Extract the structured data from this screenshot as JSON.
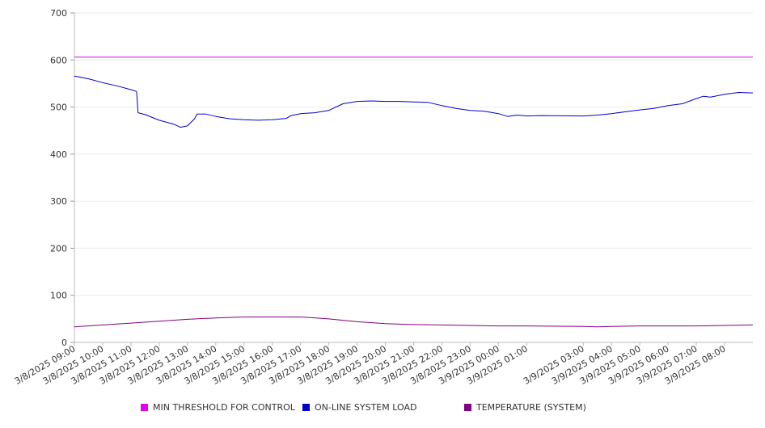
{
  "chart_data": {
    "type": "line",
    "title": "",
    "xlabel": "",
    "ylabel": "",
    "ylim": [
      0,
      700
    ],
    "yticks": [
      0,
      100,
      200,
      300,
      400,
      500,
      600,
      700
    ],
    "x_start": "3/8/2025 09:00",
    "x_end": "3/9/2025 09:00",
    "xticks": [
      "3/8/2025 09:00",
      "3/8/2025 10:00",
      "3/8/2025 11:00",
      "3/8/2025 12:00",
      "3/8/2025 13:00",
      "3/8/2025 14:00",
      "3/8/2025 15:00",
      "3/8/2025 16:00",
      "3/8/2025 17:00",
      "3/8/2025 18:00",
      "3/8/2025 19:00",
      "3/8/2025 20:00",
      "3/8/2025 21:00",
      "3/8/2025 22:00",
      "3/8/2025 23:00",
      "3/9/2025 00:00",
      "3/9/2025 01:00",
      "3/9/2025 03:00",
      "3/9/2025 04:00",
      "3/9/2025 05:00",
      "3/9/2025 06:00",
      "3/9/2025 07:00",
      "3/9/2025 08:00"
    ],
    "grid": true,
    "legend_position": "bottom",
    "series": [
      {
        "name": "MIN THRESHOLD FOR CONTROL",
        "color": "#e600e6",
        "points": [
          [
            "3/8/2025 09:00",
            606
          ],
          [
            "3/9/2025 09:00",
            606
          ]
        ]
      },
      {
        "name": "ON-LINE SYSTEM LOAD",
        "color": "#0000cc",
        "points": [
          [
            "3/8/2025 09:00",
            566
          ],
          [
            "3/8/2025 09:30",
            560
          ],
          [
            "3/8/2025 10:00",
            552
          ],
          [
            "3/8/2025 10:30",
            545
          ],
          [
            "3/8/2025 11:00",
            537
          ],
          [
            "3/8/2025 11:12",
            533
          ],
          [
            "3/8/2025 11:15",
            488
          ],
          [
            "3/8/2025 11:30",
            484
          ],
          [
            "3/8/2025 12:00",
            472
          ],
          [
            "3/8/2025 12:30",
            464
          ],
          [
            "3/8/2025 12:45",
            457
          ],
          [
            "3/8/2025 13:00",
            460
          ],
          [
            "3/8/2025 13:15",
            475
          ],
          [
            "3/8/2025 13:20",
            485
          ],
          [
            "3/8/2025 13:40",
            485
          ],
          [
            "3/8/2025 14:00",
            480
          ],
          [
            "3/8/2025 14:30",
            475
          ],
          [
            "3/8/2025 15:00",
            473
          ],
          [
            "3/8/2025 15:30",
            472
          ],
          [
            "3/8/2025 16:00",
            473
          ],
          [
            "3/8/2025 16:30",
            476
          ],
          [
            "3/8/2025 16:40",
            482
          ],
          [
            "3/8/2025 17:00",
            486
          ],
          [
            "3/8/2025 17:30",
            488
          ],
          [
            "3/8/2025 18:00",
            493
          ],
          [
            "3/8/2025 18:30",
            507
          ],
          [
            "3/8/2025 19:00",
            512
          ],
          [
            "3/8/2025 19:30",
            513
          ],
          [
            "3/8/2025 20:00",
            512
          ],
          [
            "3/8/2025 20:30",
            512
          ],
          [
            "3/8/2025 21:00",
            511
          ],
          [
            "3/8/2025 21:30",
            510
          ],
          [
            "3/8/2025 22:00",
            503
          ],
          [
            "3/8/2025 22:30",
            497
          ],
          [
            "3/8/2025 23:00",
            493
          ],
          [
            "3/8/2025 23:30",
            491
          ],
          [
            "3/9/2025 00:00",
            486
          ],
          [
            "3/9/2025 00:20",
            480
          ],
          [
            "3/9/2025 00:40",
            483
          ],
          [
            "3/9/2025 01:00",
            481
          ],
          [
            "3/9/2025 01:30",
            482
          ],
          [
            "3/9/2025 03:00",
            481
          ],
          [
            "3/9/2025 03:30",
            483
          ],
          [
            "3/9/2025 04:00",
            486
          ],
          [
            "3/9/2025 04:30",
            490
          ],
          [
            "3/9/2025 05:00",
            494
          ],
          [
            "3/9/2025 05:30",
            497
          ],
          [
            "3/9/2025 06:00",
            503
          ],
          [
            "3/9/2025 06:30",
            507
          ],
          [
            "3/9/2025 07:00",
            518
          ],
          [
            "3/9/2025 07:15",
            523
          ],
          [
            "3/9/2025 07:30",
            521
          ],
          [
            "3/9/2025 08:00",
            527
          ],
          [
            "3/9/2025 08:30",
            531
          ],
          [
            "3/9/2025 09:00",
            530
          ]
        ]
      },
      {
        "name": "TEMPERATURE (SYSTEM)",
        "color": "#800080",
        "points": [
          [
            "3/8/2025 09:00",
            33
          ],
          [
            "3/8/2025 10:00",
            37
          ],
          [
            "3/8/2025 11:00",
            41
          ],
          [
            "3/8/2025 12:00",
            45
          ],
          [
            "3/8/2025 13:00",
            49
          ],
          [
            "3/8/2025 14:00",
            52
          ],
          [
            "3/8/2025 15:00",
            54
          ],
          [
            "3/8/2025 16:00",
            54
          ],
          [
            "3/8/2025 17:00",
            54
          ],
          [
            "3/8/2025 18:00",
            50
          ],
          [
            "3/8/2025 19:00",
            44
          ],
          [
            "3/8/2025 20:00",
            40
          ],
          [
            "3/8/2025 21:00",
            38
          ],
          [
            "3/8/2025 22:00",
            37
          ],
          [
            "3/8/2025 23:00",
            36
          ],
          [
            "3/9/2025 00:00",
            35
          ],
          [
            "3/9/2025 01:00",
            35
          ],
          [
            "3/9/2025 03:00",
            34
          ],
          [
            "3/9/2025 03:30",
            33
          ],
          [
            "3/9/2025 04:00",
            34
          ],
          [
            "3/9/2025 05:00",
            35
          ],
          [
            "3/9/2025 06:00",
            35
          ],
          [
            "3/9/2025 07:00",
            35
          ],
          [
            "3/9/2025 08:00",
            36
          ],
          [
            "3/9/2025 09:00",
            37
          ]
        ]
      }
    ]
  }
}
